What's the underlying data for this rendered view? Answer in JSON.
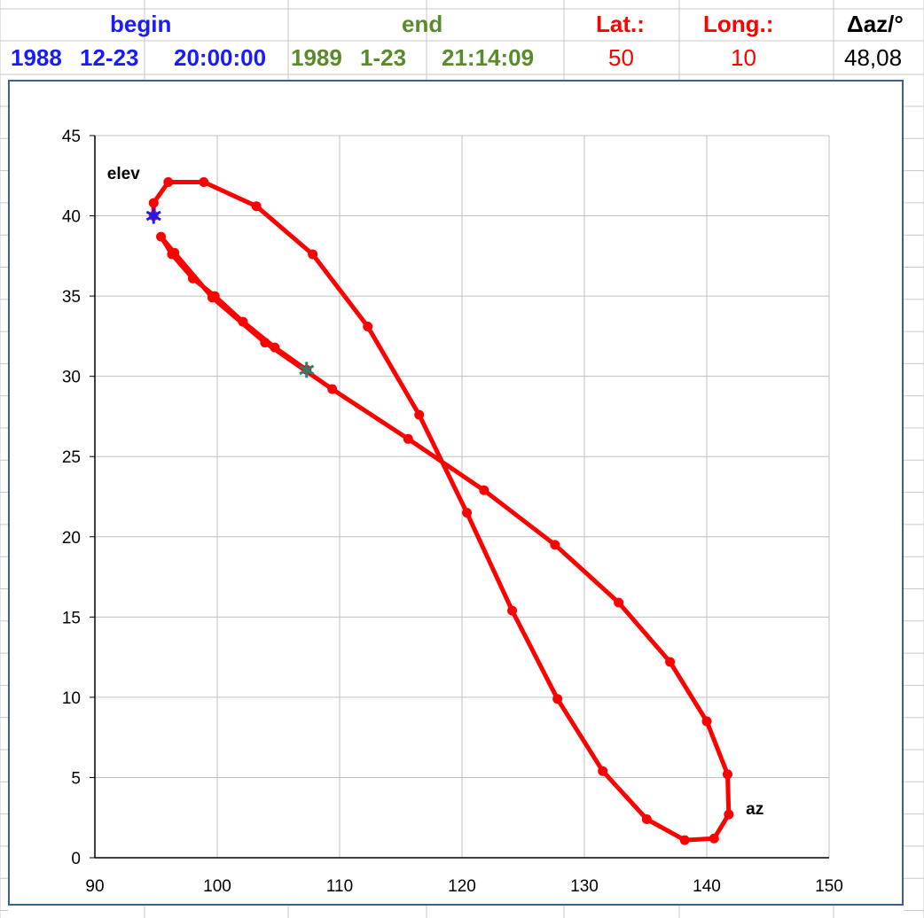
{
  "header": {
    "begin_label": "begin",
    "end_label": "end",
    "lat_label": "Lat.:",
    "long_label": "Long.:",
    "daz_label": "Δaz/°"
  },
  "values": {
    "begin_year": "1988",
    "begin_date": "12-23",
    "begin_time": "20:00:00",
    "end_year": "1989",
    "end_date": "1-23",
    "end_time": "21:14:09",
    "lat": "50",
    "long": "10",
    "daz": "48,08"
  },
  "colors": {
    "begin": "#1a1aff",
    "end": "#5b8a2b",
    "latlong": "#ff0000",
    "series": "#ff0000",
    "start_marker": "#1a1aff",
    "end_marker": "#2e7d6e"
  },
  "chart_data": {
    "type": "line",
    "xlim": [
      90,
      150
    ],
    "ylim": [
      0,
      45
    ],
    "xticks": [
      "90",
      "100",
      "110",
      "120",
      "130",
      "140",
      "150"
    ],
    "yticks": [
      "0",
      "5",
      "10",
      "15",
      "20",
      "25",
      "30",
      "35",
      "40",
      "45"
    ],
    "grid": true,
    "annotations": {
      "elev": "elev",
      "az": "az"
    },
    "series": [
      {
        "points": [
          [
            94.8,
            40.0
          ],
          [
            94.8,
            40.8
          ],
          [
            96.0,
            42.1
          ],
          [
            98.9,
            42.1
          ],
          [
            103.2,
            40.6
          ],
          [
            107.8,
            37.6
          ],
          [
            112.3,
            33.1
          ],
          [
            116.5,
            27.6
          ],
          [
            120.4,
            21.5
          ],
          [
            124.1,
            15.4
          ],
          [
            127.8,
            9.9
          ],
          [
            131.5,
            5.4
          ],
          [
            135.1,
            2.4
          ],
          [
            138.2,
            1.1
          ],
          [
            140.6,
            1.2
          ],
          [
            141.8,
            2.7
          ],
          [
            141.7,
            5.2
          ],
          [
            140.0,
            8.5
          ],
          [
            137.0,
            12.2
          ],
          [
            132.8,
            15.9
          ],
          [
            127.6,
            19.5
          ],
          [
            121.8,
            22.9
          ],
          [
            115.6,
            26.1
          ],
          [
            109.4,
            29.2
          ],
          [
            103.9,
            32.1
          ],
          [
            99.6,
            34.9
          ],
          [
            96.5,
            37.7
          ],
          [
            95.4,
            38.7
          ],
          [
            96.3,
            37.6
          ],
          [
            98.0,
            36.1
          ],
          [
            99.8,
            35.0
          ],
          [
            102.1,
            33.4
          ],
          [
            104.7,
            31.8
          ],
          [
            107.3,
            30.4
          ]
        ]
      }
    ],
    "start_marker": [
      94.8,
      40.0
    ],
    "end_marker": [
      107.3,
      30.4
    ]
  }
}
